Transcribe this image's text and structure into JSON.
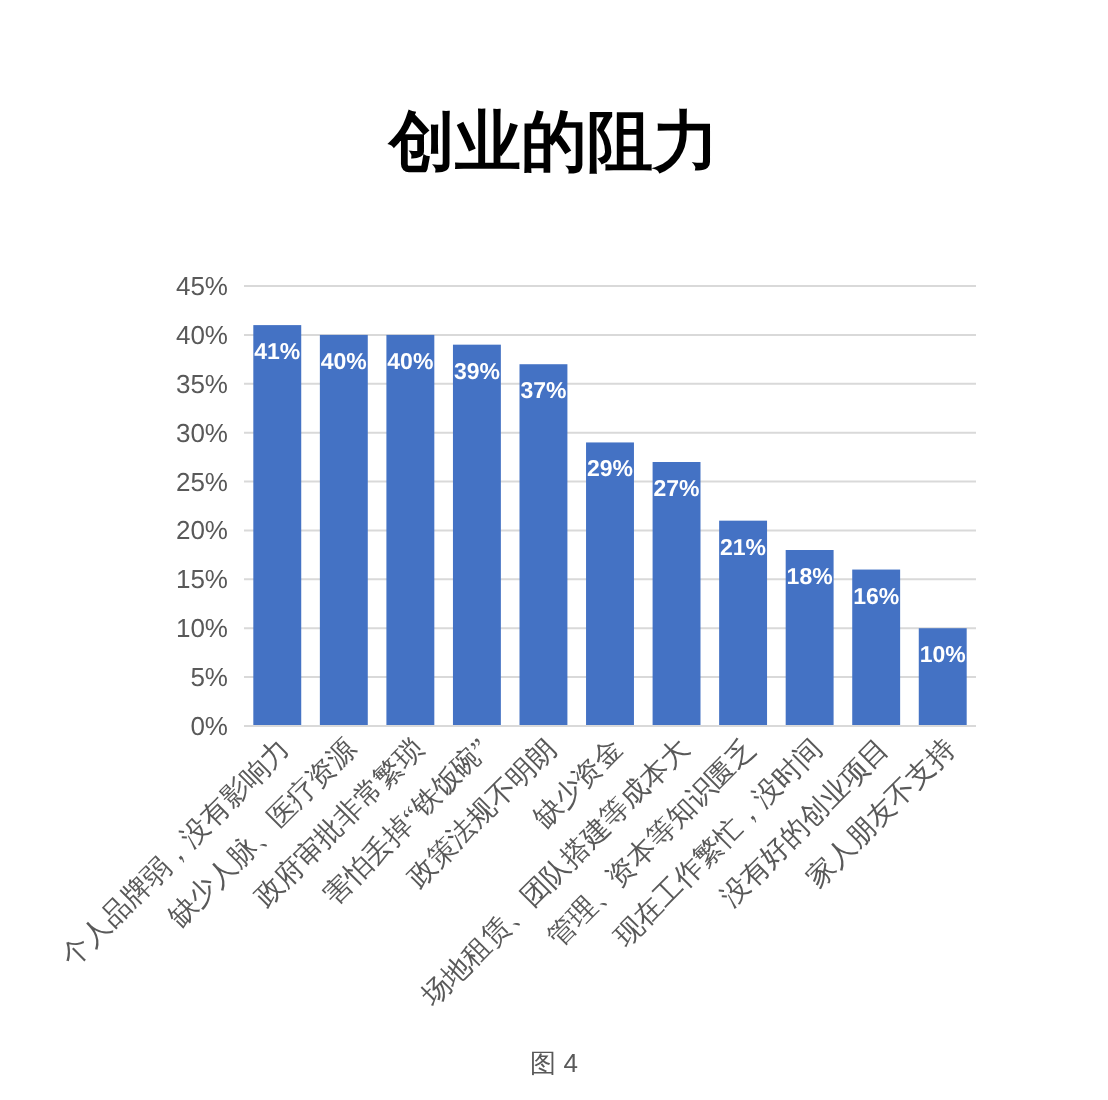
{
  "chart_data": {
    "type": "bar",
    "title": "创业的阻力",
    "categories": [
      "个人品牌弱，没有影响力",
      "缺少人脉、医疗资源",
      "政府审批非常繁琐",
      "害怕丢掉“铁饭碗”",
      "政策法规不明朗",
      "缺少资金",
      "场地租赁、团队搭建等成本大",
      "管理、资本等知识匮乏",
      "现在工作繁忙，没时间",
      "没有好的创业项目",
      "家人朋友不支持"
    ],
    "values": [
      41,
      40,
      40,
      39,
      37,
      29,
      27,
      21,
      18,
      16,
      10
    ],
    "value_labels": [
      "41%",
      "40%",
      "40%",
      "39%",
      "37%",
      "29%",
      "27%",
      "21%",
      "18%",
      "16%",
      "10%"
    ],
    "color": "#4472c4",
    "ylim": [
      0,
      45
    ],
    "yticks": [
      {
        "value": 0,
        "label": "0%"
      },
      {
        "value": 5,
        "label": "5%"
      },
      {
        "value": 10,
        "label": "10%"
      },
      {
        "value": 15,
        "label": "15%"
      },
      {
        "value": 20,
        "label": "20%"
      },
      {
        "value": 25,
        "label": "25%"
      },
      {
        "value": 30,
        "label": "30%"
      },
      {
        "value": 35,
        "label": "35%"
      },
      {
        "value": 40,
        "label": "40%"
      },
      {
        "value": 45,
        "label": "45%"
      }
    ],
    "grid": "y",
    "annotations": [
      "图 4"
    ]
  }
}
